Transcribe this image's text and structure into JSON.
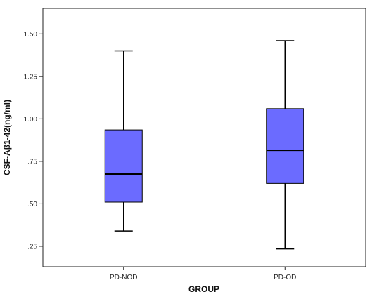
{
  "chart_data": {
    "type": "box",
    "title": "",
    "xlabel": "GROUP",
    "ylabel": "CSF-Aβ1-42(ng/ml)",
    "ylim": [
      0.13,
      1.65
    ],
    "yticks": [
      0.25,
      0.5,
      0.75,
      1.0,
      1.25,
      1.5
    ],
    "ytick_labels": [
      ".25",
      ".50",
      ".75",
      "1.00",
      "1.25",
      "1.50"
    ],
    "grid": false,
    "legend": "none",
    "box_color": "#6b6bff",
    "categories": [
      "PD-NOD",
      "PD-OD"
    ],
    "series": [
      {
        "category": "PD-NOD",
        "min": 0.34,
        "q1": 0.51,
        "median": 0.675,
        "q3": 0.935,
        "max": 1.4
      },
      {
        "category": "PD-OD",
        "min": 0.235,
        "q1": 0.62,
        "median": 0.815,
        "q3": 1.06,
        "max": 1.46
      }
    ]
  }
}
